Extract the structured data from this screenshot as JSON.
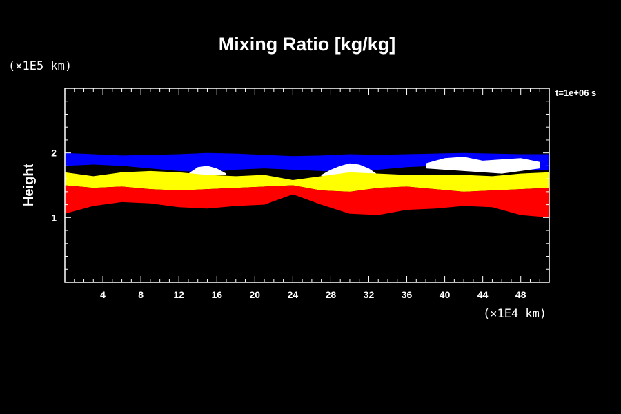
{
  "chart_data": {
    "type": "area",
    "title": "Mixing Ratio [kg/kg]",
    "ylabel": "Height",
    "y_unit": "(×1E5 km)",
    "x_unit": "(×1E4 km)",
    "time_label": "t=1e+06 s",
    "xlim": [
      0,
      51
    ],
    "ylim": [
      0,
      3
    ],
    "x_ticks": [
      "4",
      "8",
      "12",
      "16",
      "20",
      "24",
      "28",
      "32",
      "36",
      "40",
      "44",
      "48"
    ],
    "y_ticks": [
      "1",
      "2"
    ],
    "background": "#000000",
    "layer_colors": {
      "top": "#0000ff",
      "upper_middle": "#ffffff",
      "middle": "#ffff00",
      "lower": "#ff0000"
    },
    "layers": [
      {
        "color": "#0000ff",
        "x": [
          0,
          3,
          6,
          9,
          12,
          15,
          18,
          21,
          24,
          27,
          30,
          33,
          36,
          39,
          42,
          45,
          48,
          51
        ],
        "y_top": [
          2.0,
          1.98,
          1.96,
          1.97,
          1.98,
          2.0,
          1.99,
          1.97,
          1.95,
          1.96,
          1.98,
          1.97,
          1.98,
          1.99,
          2.0,
          1.99,
          1.98,
          1.98
        ],
        "y_bottom": [
          1.8,
          1.82,
          1.8,
          1.76,
          1.72,
          1.7,
          1.74,
          1.76,
          1.74,
          1.72,
          1.7,
          1.74,
          1.78,
          1.8,
          1.78,
          1.76,
          1.74,
          1.74
        ]
      },
      {
        "color": "#ffffff",
        "x": [
          13,
          14,
          15,
          16,
          17
        ],
        "y_top": [
          1.68,
          1.78,
          1.8,
          1.76,
          1.68
        ],
        "y_bottom": [
          1.66,
          1.66,
          1.66,
          1.66,
          1.66
        ]
      },
      {
        "color": "#ffffff",
        "x": [
          27,
          28,
          29,
          30,
          31,
          32,
          33
        ],
        "y_top": [
          1.66,
          1.74,
          1.8,
          1.84,
          1.82,
          1.76,
          1.66
        ],
        "y_bottom": [
          1.64,
          1.64,
          1.64,
          1.64,
          1.64,
          1.64,
          1.64
        ]
      },
      {
        "color": "#ffffff",
        "x": [
          38,
          40,
          42,
          44,
          46,
          48,
          50
        ],
        "y_top": [
          1.84,
          1.92,
          1.94,
          1.88,
          1.9,
          1.92,
          1.86
        ],
        "y_bottom": [
          1.76,
          1.74,
          1.72,
          1.7,
          1.68,
          1.72,
          1.76
        ]
      },
      {
        "color": "#ffff00",
        "x": [
          0,
          3,
          6,
          9,
          12,
          15,
          18,
          21,
          24,
          27,
          30,
          33,
          36,
          39,
          42,
          45,
          48,
          51
        ],
        "y_top": [
          1.7,
          1.64,
          1.7,
          1.72,
          1.7,
          1.66,
          1.64,
          1.66,
          1.58,
          1.64,
          1.7,
          1.68,
          1.66,
          1.66,
          1.66,
          1.64,
          1.68,
          1.7
        ],
        "y_bottom": [
          1.5,
          1.46,
          1.48,
          1.44,
          1.42,
          1.44,
          1.46,
          1.48,
          1.5,
          1.42,
          1.4,
          1.46,
          1.48,
          1.44,
          1.4,
          1.42,
          1.44,
          1.46
        ]
      },
      {
        "color": "#ff0000",
        "x": [
          0,
          3,
          6,
          9,
          12,
          15,
          18,
          21,
          24,
          27,
          30,
          33,
          36,
          39,
          42,
          45,
          48,
          51
        ],
        "y_top": [
          1.5,
          1.46,
          1.48,
          1.44,
          1.42,
          1.44,
          1.46,
          1.48,
          1.5,
          1.42,
          1.4,
          1.46,
          1.48,
          1.44,
          1.4,
          1.42,
          1.44,
          1.46
        ],
        "y_bottom": [
          1.06,
          1.18,
          1.24,
          1.22,
          1.16,
          1.14,
          1.18,
          1.2,
          1.36,
          1.2,
          1.06,
          1.04,
          1.12,
          1.14,
          1.18,
          1.16,
          1.04,
          1.0
        ]
      }
    ]
  }
}
